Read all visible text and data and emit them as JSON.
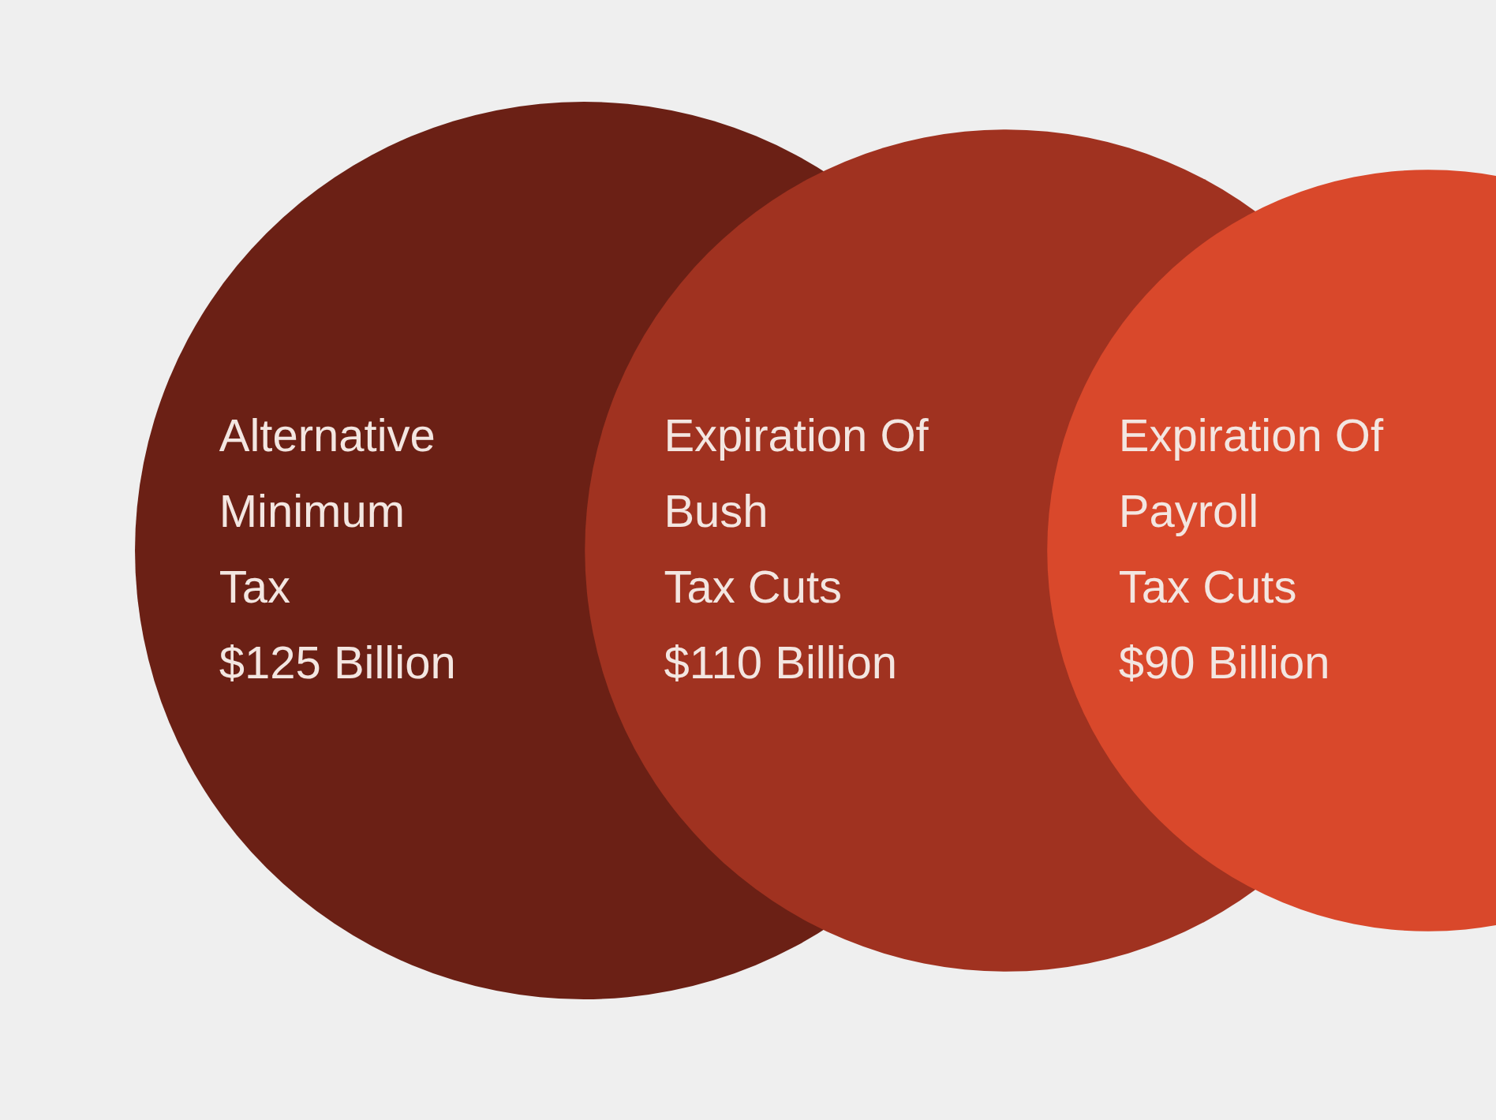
{
  "chart_data": {
    "type": "other",
    "categories": [
      "Alternative\nMinimum\nTax",
      "Expiration Of\nBush\nTax Cuts",
      "Expiration Of\nPayroll\nTax Cuts"
    ],
    "values": [
      125,
      110,
      90
    ],
    "value_labels": [
      "$125 Billion",
      "$110 Billion",
      "$90 Billion"
    ],
    "colors": [
      "#6b2015",
      "#a03220",
      "#d9482b"
    ]
  }
}
